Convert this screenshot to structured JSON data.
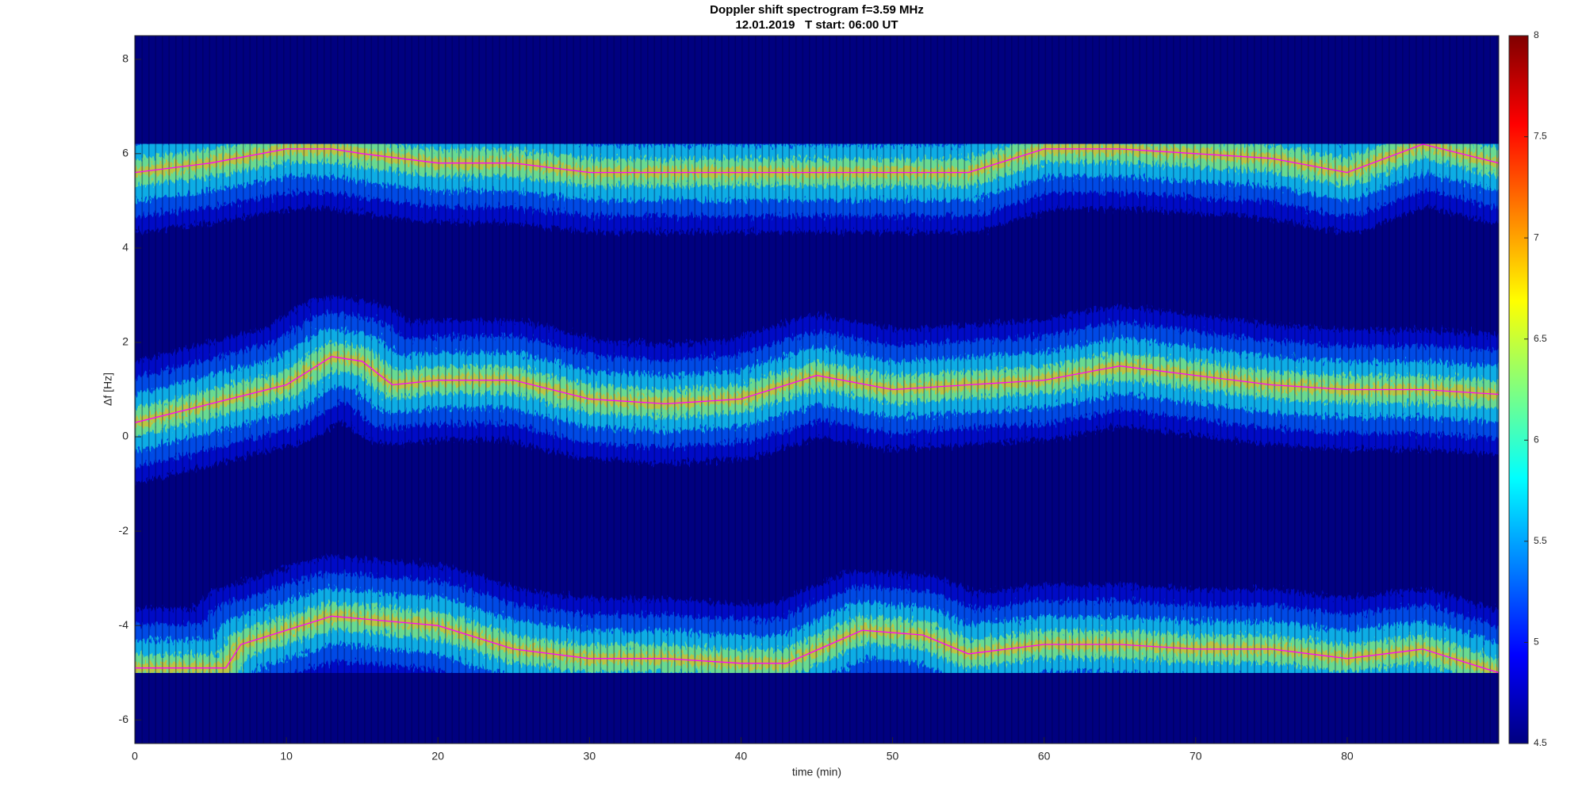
{
  "chart_data": {
    "type": "spectrogram",
    "title": "Doppler shift spectrogram f=3.59 MHz",
    "subtitle": "12.01.2019   T start: 06:00 UT",
    "x_label": "time (min)",
    "y_label": "Δf [Hz]",
    "xlim": [
      0,
      90
    ],
    "xticks": [
      0,
      10,
      20,
      30,
      40,
      50,
      60,
      70,
      80
    ],
    "ylim": [
      -6.5,
      8.5
    ],
    "yticks": [
      -6,
      -4,
      -2,
      0,
      2,
      4,
      6,
      8
    ],
    "colorbar": {
      "colormap": "jet",
      "lim": [
        4.5,
        8
      ],
      "ticks": [
        4.5,
        5,
        5.5,
        6,
        6.5,
        7,
        7.5,
        8
      ]
    },
    "series": [
      {
        "color": "#ff00ff",
        "x": [
          0,
          5,
          10,
          13,
          15,
          20,
          25,
          30,
          35,
          40,
          45,
          50,
          55,
          60,
          65,
          70,
          75,
          80,
          85,
          90
        ],
        "values": [
          5.6,
          5.8,
          6.1,
          6.1,
          6.0,
          5.8,
          5.8,
          5.6,
          5.6,
          5.6,
          5.6,
          5.6,
          5.6,
          6.1,
          6.1,
          6.0,
          5.9,
          5.6,
          6.2,
          5.8
        ]
      },
      {
        "color": "#ff00ff",
        "x": [
          0,
          5,
          10,
          13,
          15,
          17,
          20,
          25,
          30,
          35,
          40,
          45,
          50,
          55,
          60,
          65,
          70,
          75,
          80,
          85,
          90
        ],
        "values": [
          0.3,
          0.7,
          1.1,
          1.7,
          1.6,
          1.1,
          1.2,
          1.2,
          0.8,
          0.7,
          0.8,
          1.3,
          1.0,
          1.1,
          1.2,
          1.5,
          1.3,
          1.1,
          1.0,
          1.0,
          0.9
        ]
      },
      {
        "color": "#ff00ff",
        "x": [
          0,
          6,
          7,
          10,
          13,
          20,
          25,
          30,
          35,
          40,
          43,
          48,
          52,
          55,
          60,
          65,
          70,
          75,
          80,
          85,
          90
        ],
        "values": [
          -4.9,
          -4.9,
          -4.4,
          -4.1,
          -3.8,
          -4.0,
          -4.5,
          -4.7,
          -4.7,
          -4.8,
          -4.8,
          -4.1,
          -4.2,
          -4.6,
          -4.4,
          -4.4,
          -4.5,
          -4.5,
          -4.7,
          -4.5,
          -5.0
        ]
      }
    ]
  }
}
